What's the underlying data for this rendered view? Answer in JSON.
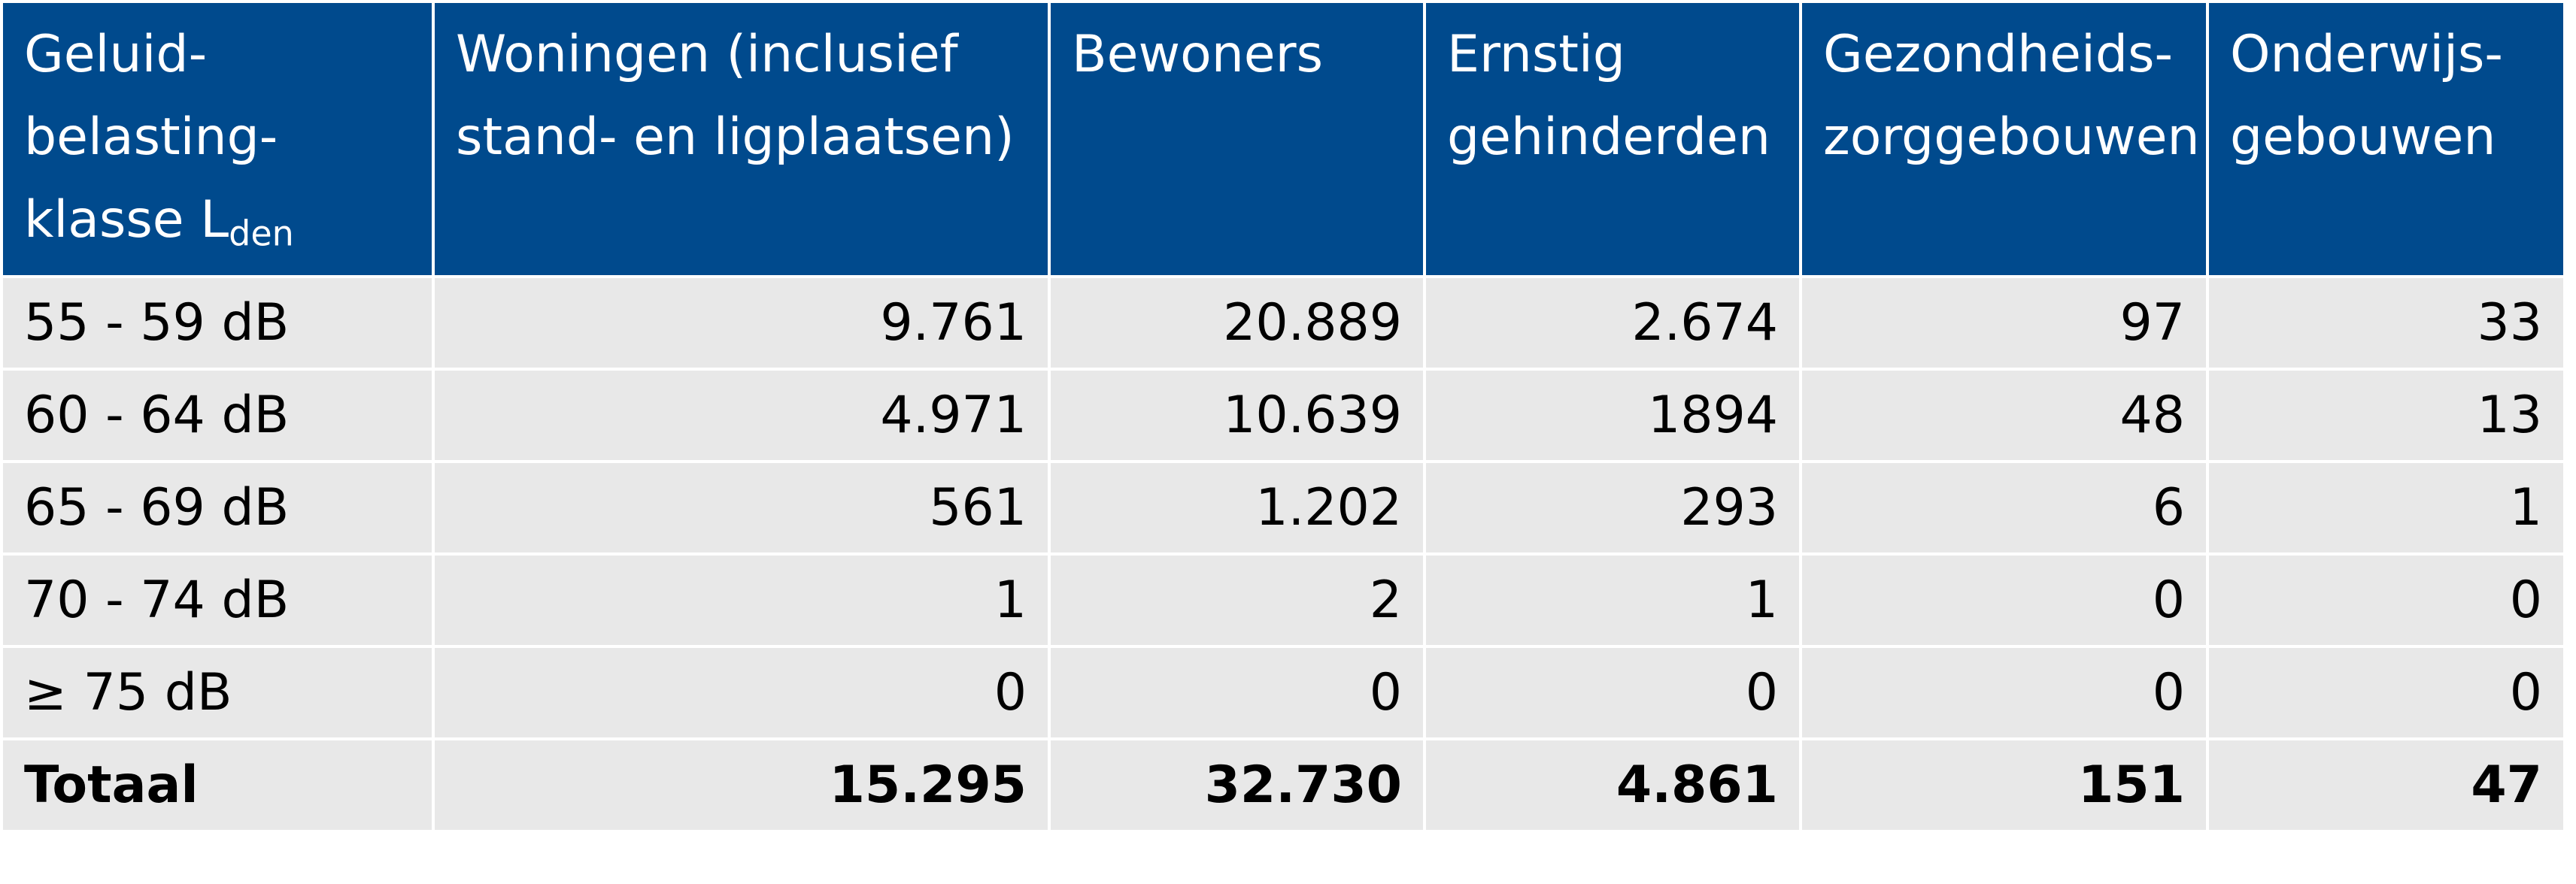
{
  "table": {
    "headers": {
      "klasse": {
        "line1": "Geluid-",
        "line2": "belasting-",
        "line3": "klasse L",
        "sub": "den"
      },
      "woningen": {
        "line1": "Woningen (inclusief",
        "line2": "stand- en ligplaatsen)"
      },
      "bewoners": {
        "line1": "Bewoners"
      },
      "ernstig": {
        "line1": "Ernstig",
        "line2": "gehinderden"
      },
      "gezondheid": {
        "line1": "Gezondheids-",
        "line2": "zorggebouwen"
      },
      "onderwijs": {
        "line1": "Onderwijs-",
        "line2": "gebouwen"
      }
    },
    "rows": [
      {
        "klasse": "55 - 59 dB",
        "woningen": "9.761",
        "bewoners": "20.889",
        "ernstig": "2.674",
        "gezondheid": "97",
        "onderwijs": "33"
      },
      {
        "klasse": "60 - 64 dB",
        "woningen": "4.971",
        "bewoners": "10.639",
        "ernstig": "1894",
        "gezondheid": "48",
        "onderwijs": "13"
      },
      {
        "klasse": "65 - 69 dB",
        "woningen": "561",
        "bewoners": "1.202",
        "ernstig": "293",
        "gezondheid": "6",
        "onderwijs": "1"
      },
      {
        "klasse": "70 - 74 dB",
        "woningen": "1",
        "bewoners": "2",
        "ernstig": "1",
        "gezondheid": "0",
        "onderwijs": "0"
      },
      {
        "klasse": "≥ 75 dB",
        "woningen": "0",
        "bewoners": "0",
        "ernstig": "0",
        "gezondheid": "0",
        "onderwijs": "0"
      }
    ],
    "total": {
      "klasse": "Totaal",
      "woningen": "15.295",
      "bewoners": "32.730",
      "ernstig": "4.861",
      "gezondheid": "151",
      "onderwijs": "47"
    }
  },
  "colors": {
    "header_bg": "#004a8d",
    "header_text": "#ffffff",
    "cell_bg": "#e8e8e8"
  }
}
